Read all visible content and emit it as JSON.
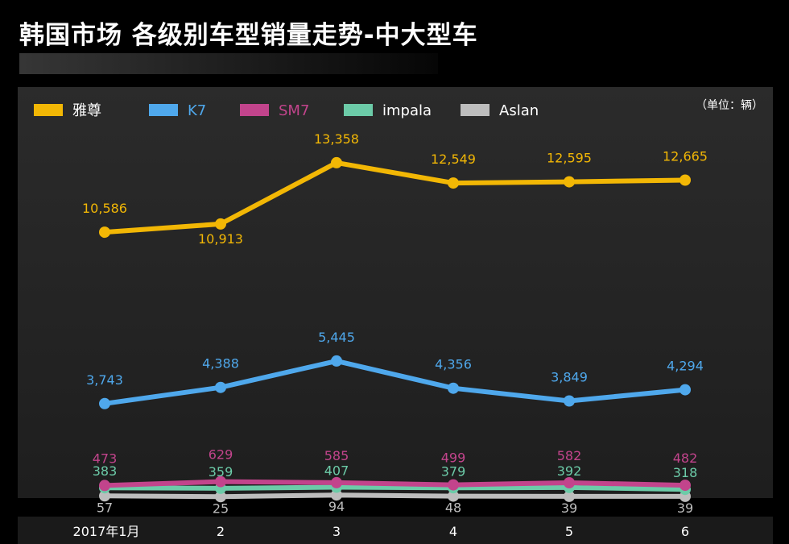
{
  "title": "韩国市场 各级别车型销量走势-中大型车",
  "unit_label": "（单位：辆）",
  "chart_data": {
    "type": "line",
    "categories": [
      "2017年1月",
      "2",
      "3",
      "4",
      "5",
      "6"
    ],
    "series": [
      {
        "name": "雅尊",
        "color": "#F2B705",
        "values": [
          10586,
          10913,
          13358,
          12549,
          12595,
          12665
        ],
        "labels": [
          "10,586",
          "10,913",
          "13,358",
          "12,549",
          "12,595",
          "12,665"
        ]
      },
      {
        "name": "K7",
        "color": "#4FA8EC",
        "values": [
          3743,
          4388,
          5445,
          4356,
          3849,
          4294
        ],
        "labels": [
          "3,743",
          "4,388",
          "5,445",
          "4,356",
          "3,849",
          "4,294"
        ]
      },
      {
        "name": "SM7",
        "color": "#C2448C",
        "values": [
          473,
          629,
          585,
          499,
          582,
          482
        ],
        "labels": [
          "473",
          "629",
          "585",
          "499",
          "582",
          "482"
        ]
      },
      {
        "name": "impala",
        "color": "#6CCBA8",
        "values": [
          383,
          359,
          407,
          379,
          392,
          318
        ],
        "labels": [
          "383",
          "359",
          "407",
          "379",
          "392",
          "318"
        ]
      },
      {
        "name": "Aslan",
        "color": "#BDBDBD",
        "values": [
          57,
          25,
          94,
          48,
          39,
          39
        ],
        "labels": [
          "57",
          "25",
          "94",
          "48",
          "39",
          "39"
        ]
      }
    ],
    "legend_position": "top-left",
    "grid": false
  }
}
